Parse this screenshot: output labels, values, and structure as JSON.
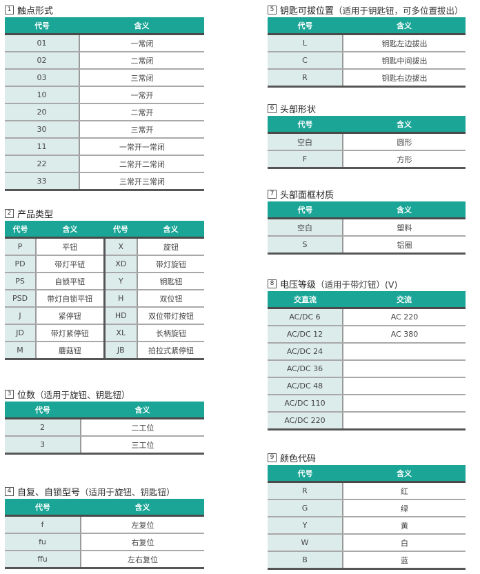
{
  "sections": [
    {
      "id": "1",
      "title": "触点形式",
      "subtitle": "",
      "headers": [
        "代号",
        "含义"
      ],
      "rows": [
        [
          "01",
          "一常闭"
        ],
        [
          "02",
          "二常闭"
        ],
        [
          "03",
          "三常闭"
        ],
        [
          "10",
          "一常开"
        ],
        [
          "20",
          "二常开"
        ],
        [
          "30",
          "三常开"
        ],
        [
          "11",
          "一常开一常闭"
        ],
        [
          "22",
          "二常开二常闭"
        ],
        [
          "33",
          "三常开三常闭"
        ]
      ]
    },
    {
      "id": "2",
      "title": "产品类型",
      "subtitle": "",
      "headers": [
        "代号",
        "含义",
        "代号",
        "含义"
      ],
      "rows": [
        [
          "P",
          "平钮",
          "X",
          "旋钮"
        ],
        [
          "PD",
          "带灯平钮",
          "XD",
          "带灯旋钮"
        ],
        [
          "PS",
          "自锁平钮",
          "Y",
          "钥匙钮"
        ],
        [
          "PSD",
          "带灯自锁平钮",
          "H",
          "双位钮"
        ],
        [
          "J",
          "紧停钮",
          "HD",
          "双位带灯按钮"
        ],
        [
          "JD",
          "带灯紧停钮",
          "XL",
          "长柄旋钮"
        ],
        [
          "M",
          "蘑菇钮",
          "JB",
          "拍拉式紧停钮"
        ]
      ]
    },
    {
      "id": "3",
      "title": "位数",
      "subtitle": "（适用于旋钮、钥匙钮）",
      "headers": [
        "代号",
        "含义"
      ],
      "rows": [
        [
          "2",
          "二工位"
        ],
        [
          "3",
          "三工位"
        ]
      ]
    },
    {
      "id": "4",
      "title": "自复、自锁型号",
      "subtitle": "（适用于旋钮、钥匙钮）",
      "headers": [
        "代号",
        "含义"
      ],
      "rows": [
        [
          "f",
          "左复位"
        ],
        [
          "fu",
          "右复位"
        ],
        [
          "ffu",
          "左右复位"
        ]
      ]
    },
    {
      "id": "5",
      "title": "钥匙可拔位置",
      "subtitle": "（适用于钥匙钮，可多位置拔出）",
      "headers": [
        "代号",
        "含义"
      ],
      "rows": [
        [
          "L",
          "钥匙左边拔出"
        ],
        [
          "C",
          "钥匙中间拔出"
        ],
        [
          "R",
          "钥匙右边拔出"
        ]
      ]
    },
    {
      "id": "6",
      "title": "头部形状",
      "subtitle": "",
      "headers": [
        "代号",
        "含义"
      ],
      "rows": [
        [
          "空白",
          "圆形"
        ],
        [
          "F",
          "方形"
        ]
      ]
    },
    {
      "id": "7",
      "title": "头部面框材质",
      "subtitle": "",
      "headers": [
        "代号",
        "含义"
      ],
      "rows": [
        [
          "空白",
          "塑料"
        ],
        [
          "S",
          "铝圈"
        ]
      ]
    },
    {
      "id": "8",
      "title": "电压等级",
      "subtitle": "（适用于带灯钮）(V)",
      "headers": [
        "交直流",
        "交流"
      ],
      "rows": [
        [
          "AC/DC 6",
          "AC 220"
        ],
        [
          "AC/DC 12",
          "AC 380"
        ],
        [
          "AC/DC 24",
          ""
        ],
        [
          "AC/DC 36",
          ""
        ],
        [
          "AC/DC 48",
          ""
        ],
        [
          "AC/DC 110",
          ""
        ],
        [
          "AC/DC 220",
          ""
        ]
      ]
    },
    {
      "id": "9",
      "title": "颜色代码",
      "subtitle": "",
      "headers": [
        "代号",
        "含义"
      ],
      "rows": [
        [
          "R",
          "红"
        ],
        [
          "G",
          "绿"
        ],
        [
          "Y",
          "黄"
        ],
        [
          "W",
          "白"
        ],
        [
          "B",
          "蓝"
        ]
      ]
    }
  ],
  "colors": {
    "header": "#1aa596",
    "code_column": "#dcecea"
  }
}
